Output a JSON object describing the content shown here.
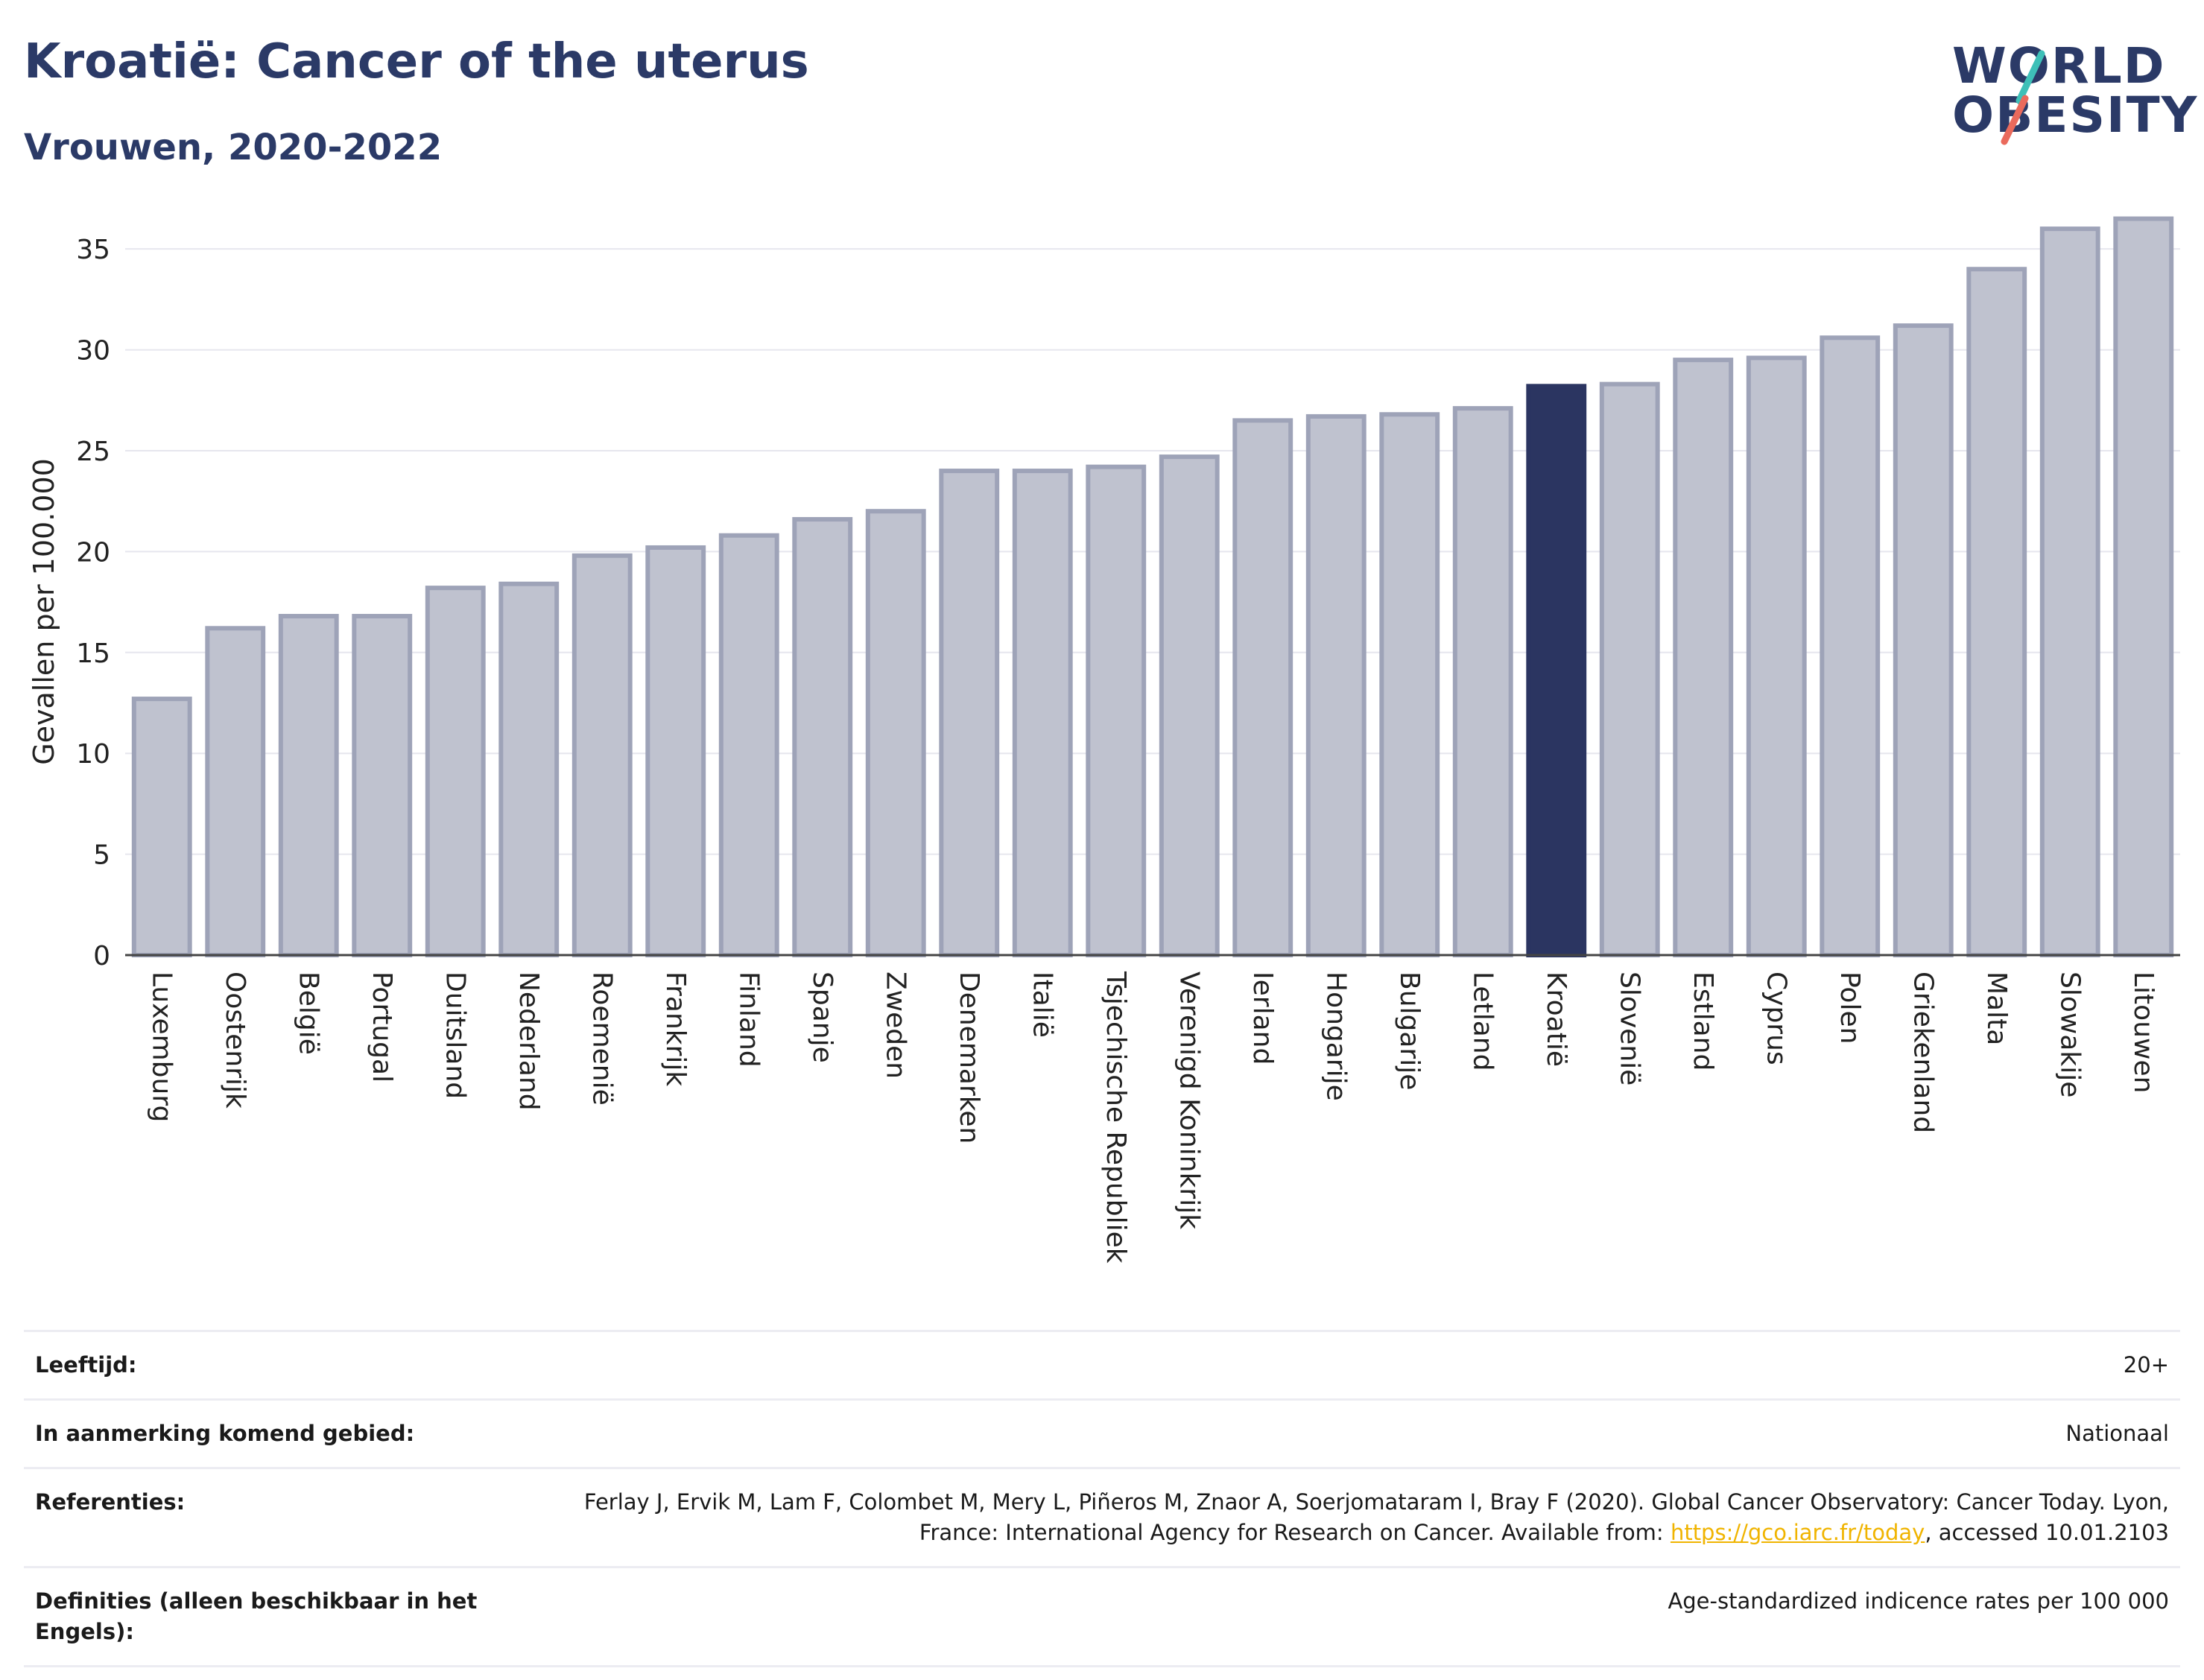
{
  "header": {
    "title": "Kroatië: Cancer of the uterus",
    "subtitle": "Vrouwen, 2020-2022"
  },
  "logo": {
    "line1": "WORLD",
    "line2": "OBESITY"
  },
  "colors": {
    "highlight": "#2b3561",
    "bar_fill": "#bfc2cf",
    "bar_stroke": "#9ea3b8",
    "accent_teal": "#3ec0b8",
    "accent_coral": "#ea6a5c"
  },
  "chart_data": {
    "type": "bar",
    "title": "Kroatië: Cancer of the uterus",
    "subtitle": "Vrouwen, 2020-2022",
    "ylabel": "Gevallen per 100.000",
    "xlabel": "",
    "ylim": [
      0,
      37
    ],
    "yticks": [
      0,
      5,
      10,
      15,
      20,
      25,
      30,
      35
    ],
    "grid": true,
    "highlight": "Kroatië",
    "categories": [
      "Luxemburg",
      "Oostenrijk",
      "België",
      "Portugal",
      "Duitsland",
      "Nederland",
      "Roemenië",
      "Frankrijk",
      "Finland",
      "Spanje",
      "Zweden",
      "Denemarken",
      "Italië",
      "Tsjechische Republiek",
      "Verenigd Koninkrijk",
      "Ierland",
      "Hongarije",
      "Bulgarije",
      "Letland",
      "Kroatië",
      "Slovenië",
      "Estland",
      "Cyprus",
      "Polen",
      "Griekenland",
      "Malta",
      "Slowakije",
      "Litouwen"
    ],
    "values": [
      12.7,
      16.2,
      16.8,
      16.8,
      18.2,
      18.4,
      19.8,
      20.2,
      20.8,
      21.6,
      22.0,
      24.0,
      24.0,
      24.2,
      24.7,
      26.5,
      26.7,
      26.8,
      27.1,
      28.2,
      28.3,
      29.5,
      29.6,
      30.6,
      31.2,
      34.0,
      36.0,
      36.5
    ]
  },
  "info": {
    "age_label": "Leeftijd:",
    "age_value": "20+",
    "area_label": "In aanmerking komend gebied:",
    "area_value": "Nationaal",
    "ref_label": "Referenties:",
    "ref_text_1": "Ferlay J, Ervik M, Lam F, Colombet M, Mery L, Piñeros M, Znaor A, Soerjomataram I, Bray F (2020). Global Cancer Observatory: Cancer Today. Lyon, France: International Agency for Research on Cancer. Available from: ",
    "ref_link": "https://gco.iarc.fr/today",
    "ref_text_2": ", accessed 10.01.2103",
    "def_label": "Definities (alleen beschikbaar in het Engels):",
    "def_value": "Age-standardized indicence rates per 100 000"
  }
}
